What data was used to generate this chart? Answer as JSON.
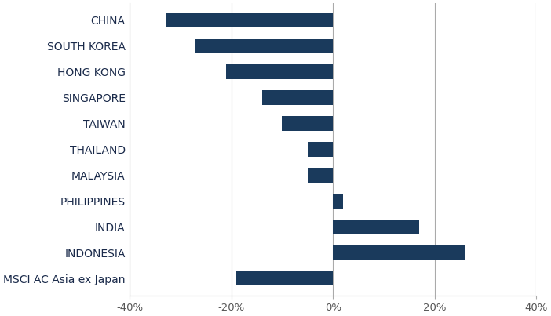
{
  "categories": [
    "CHINA",
    "SOUTH KOREA",
    "HONG KONG",
    "SINGAPORE",
    "TAIWAN",
    "THAILAND",
    "MALAYSIA",
    "PHILIPPINES",
    "INDIA",
    "INDONESIA",
    "MSCI AC Asia ex Japan"
  ],
  "values": [
    -33,
    -27,
    -21,
    -14,
    -10,
    -5,
    -5,
    2,
    17,
    26,
    -19
  ],
  "bar_color": "#1a3a5c",
  "background_color": "#ffffff",
  "xlim": [
    -40,
    40
  ],
  "xticks": [
    -40,
    -20,
    0,
    20,
    40
  ],
  "xtick_labels": [
    "-40%",
    "-20%",
    "0%",
    "20%",
    "40%"
  ],
  "grid_color": "#aaaaaa",
  "label_fontsize": 9.5,
  "tick_fontsize": 9.5,
  "bar_height": 0.55
}
